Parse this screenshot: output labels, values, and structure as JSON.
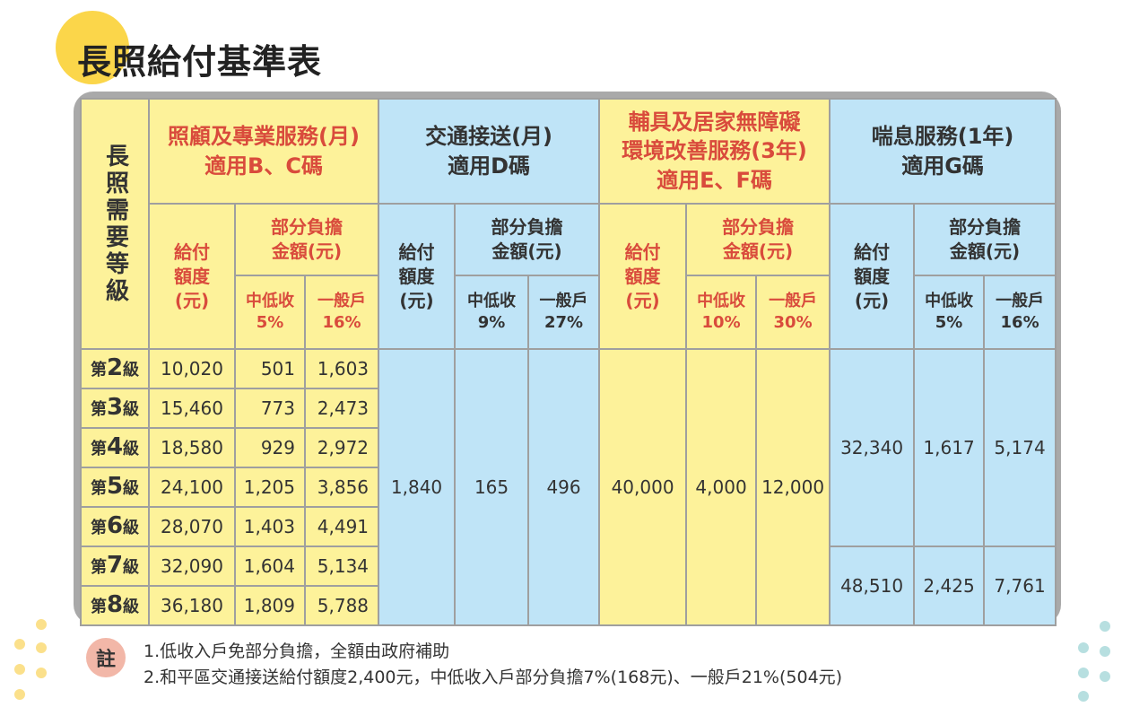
{
  "title": "長照給付基準表",
  "header": {
    "level_col": "長照需要等級",
    "groups": [
      {
        "name": "照顧及專業服務(月)",
        "sub": "適用B、C碼"
      },
      {
        "name": "交通接送(月)",
        "sub": "適用D碼"
      },
      {
        "name_line1": "輔具及居家無障礙",
        "name_line2": "環境改善服務(3年)",
        "sub": "適用E、F碼"
      },
      {
        "name": "喘息服務(1年)",
        "sub": "適用G碼"
      }
    ],
    "pay_l1": "給付",
    "pay_l2": "額度",
    "pay_l3": "(元)",
    "copay_l1": "部分負擔",
    "copay_l2": "金額(元)",
    "low_income": "中低收",
    "general": "一般戶",
    "pct": {
      "g1_low": "5%",
      "g1_gen": "16%",
      "g2_low": "9%",
      "g2_gen": "27%",
      "g3_low": "10%",
      "g3_gen": "30%",
      "g4_low": "5%",
      "g4_gen": "16%"
    }
  },
  "rows": [
    {
      "pre": "第",
      "n": "2",
      "post": "級",
      "pay": "10,020",
      "low": "501",
      "gen": "1,603"
    },
    {
      "pre": "第",
      "n": "3",
      "post": "級",
      "pay": "15,460",
      "low": "773",
      "gen": "2,473"
    },
    {
      "pre": "第",
      "n": "4",
      "post": "級",
      "pay": "18,580",
      "low": "929",
      "gen": "2,972"
    },
    {
      "pre": "第",
      "n": "5",
      "post": "級",
      "pay": "24,100",
      "low": "1,205",
      "gen": "3,856"
    },
    {
      "pre": "第",
      "n": "6",
      "post": "級",
      "pay": "28,070",
      "low": "1,403",
      "gen": "4,491"
    },
    {
      "pre": "第",
      "n": "7",
      "post": "級",
      "pay": "32,090",
      "low": "1,604",
      "gen": "5,134"
    },
    {
      "pre": "第",
      "n": "8",
      "post": "級",
      "pay": "36,180",
      "low": "1,809",
      "gen": "5,788"
    }
  ],
  "transport": {
    "pay": "1,840",
    "low": "165",
    "gen": "496"
  },
  "assistive": {
    "pay": "40,000",
    "low": "4,000",
    "gen": "12,000"
  },
  "respite": [
    {
      "pay": "32,340",
      "low": "1,617",
      "gen": "5,174"
    },
    {
      "pay": "48,510",
      "low": "2,425",
      "gen": "7,761"
    }
  ],
  "notes": {
    "badge": "註",
    "lines": [
      "1.低收入戶免部分負擔，全額由政府補助",
      "2.和平區交通接送給付額度2,400元，中低收入戶部分負擔7%(168元)、一般戶21%(504元)"
    ]
  },
  "colors": {
    "yellow": "#fdf29a",
    "blue": "#bfe4f7",
    "red_text": "#d94b3c",
    "frame": "#a9a9a9"
  }
}
